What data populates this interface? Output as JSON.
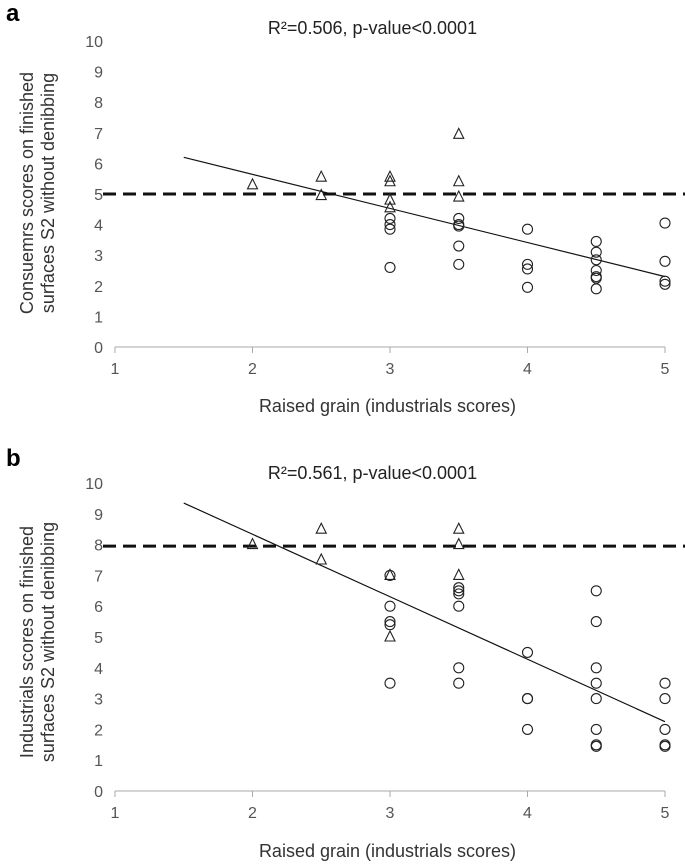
{
  "chart_data": [
    {
      "panel": "a",
      "type": "scatter",
      "title": "R²=0.506, p-value<0.0001",
      "xlabel": "Raised grain (industrials scores)",
      "ylabel_lines": [
        "Consuemrs scores on finished",
        "surfaces S2 without denibbing"
      ],
      "xlim": [
        1,
        5
      ],
      "ylim": [
        0,
        10
      ],
      "xticks": [
        "1",
        "2",
        "3",
        "4",
        "5"
      ],
      "yticks": [
        "0",
        "1",
        "2",
        "3",
        "4",
        "5",
        "6",
        "7",
        "8",
        "9",
        "10"
      ],
      "threshold": 5.0,
      "trendline": {
        "x": [
          1.5,
          5
        ],
        "y": [
          6.2,
          2.3
        ]
      },
      "series": [
        {
          "name": "triangle",
          "marker": "triangle",
          "x": [
            2,
            2.5,
            2.5,
            3,
            3,
            3,
            3,
            3.5,
            3.5,
            3.5
          ],
          "y": [
            5.3,
            5.55,
            4.95,
            5.55,
            5.4,
            4.8,
            4.55,
            6.95,
            5.4,
            4.9
          ]
        },
        {
          "name": "circle",
          "marker": "circle",
          "x": [
            3,
            3,
            3,
            3,
            3.5,
            3.5,
            3.5,
            3.5,
            3.5,
            4,
            4,
            4,
            4,
            4.5,
            4.5,
            4.5,
            4.5,
            4.5,
            4.5,
            4.5,
            5,
            5,
            5,
            5
          ],
          "y": [
            4.2,
            4.0,
            3.85,
            2.6,
            4.2,
            3.95,
            3.3,
            2.7,
            4.0,
            3.85,
            2.7,
            2.55,
            1.95,
            3.45,
            3.1,
            2.85,
            2.5,
            2.3,
            2.25,
            1.9,
            4.05,
            2.8,
            2.15,
            2.05
          ]
        }
      ]
    },
    {
      "panel": "b",
      "type": "scatter",
      "title": "R²=0.561, p-value<0.0001",
      "xlabel": "Raised grain (industrials scores)",
      "ylabel_lines": [
        "Industrials scores on finished",
        "surfaces S2 without denibbing"
      ],
      "xlim": [
        1,
        5
      ],
      "ylim": [
        0,
        10
      ],
      "xticks": [
        "1",
        "2",
        "3",
        "4",
        "5"
      ],
      "yticks": [
        "0",
        "1",
        "2",
        "3",
        "4",
        "5",
        "6",
        "7",
        "8",
        "9",
        "10"
      ],
      "threshold": 7.95,
      "trendline": {
        "x": [
          1.5,
          5
        ],
        "y": [
          9.35,
          2.25
        ]
      },
      "series": [
        {
          "name": "triangle",
          "marker": "triangle",
          "x": [
            2,
            2.5,
            2.5,
            3,
            3,
            3.5,
            3.5,
            3.5
          ],
          "y": [
            8.0,
            8.5,
            7.5,
            7.0,
            5.0,
            8.5,
            8.0,
            7.0
          ]
        },
        {
          "name": "circle",
          "marker": "circle",
          "x": [
            3,
            3,
            3,
            3,
            3,
            3.5,
            3.5,
            3.5,
            3.5,
            3.5,
            3.5,
            4,
            4,
            4,
            4,
            4.5,
            4.5,
            4.5,
            4.5,
            4.5,
            4.5,
            4.5,
            4.5,
            5,
            5,
            5,
            5,
            5
          ],
          "y": [
            7.0,
            6.0,
            5.5,
            5.4,
            3.5,
            6.5,
            6.4,
            6.0,
            4.0,
            3.5,
            6.6,
            4.5,
            3.0,
            3.0,
            2.0,
            6.5,
            5.5,
            4.0,
            3.5,
            3.0,
            2.0,
            1.5,
            1.45,
            3.5,
            3.0,
            2.0,
            1.5,
            1.45
          ]
        }
      ]
    }
  ],
  "panels": {
    "a": {
      "letter": "a"
    },
    "b": {
      "letter": "b"
    }
  }
}
